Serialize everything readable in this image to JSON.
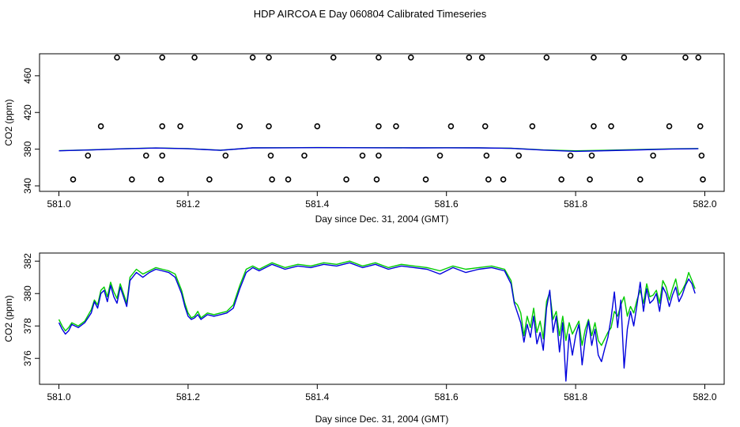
{
  "title": "HDP AIRCOA E  Day 060804  Calibrated Timeseries",
  "colors": {
    "series_green": "#00cc00",
    "series_blue": "#0000dd",
    "points": "#000000",
    "axis": "#000000"
  },
  "chart_data": [
    {
      "type": "line",
      "xlabel": "Day since Dec. 31, 2004 (GMT)",
      "ylabel": "CO2 (ppm)",
      "xlim": [
        580.97,
        582.03
      ],
      "ylim": [
        334,
        484
      ],
      "xticks": [
        581.0,
        581.2,
        581.4,
        581.6,
        581.8,
        582.0
      ],
      "xtick_labels": [
        "581.0",
        "581.2",
        "581.4",
        "581.6",
        "581.8",
        "582.0"
      ],
      "yticks": [
        340,
        380,
        420,
        460
      ],
      "ytick_labels": [
        "340",
        "380",
        "420",
        "460"
      ],
      "grid": false,
      "series": [
        {
          "color_key": "series_green",
          "line_style": "solid",
          "x": [
            581.0,
            581.05,
            581.1,
            581.15,
            581.2,
            581.25,
            581.3,
            581.35,
            581.4,
            581.45,
            581.5,
            581.55,
            581.6,
            581.65,
            581.7,
            581.75,
            581.8,
            581.85,
            581.9,
            581.95,
            581.99
          ],
          "y": [
            378.3,
            379.3,
            380.5,
            381.3,
            380.6,
            378.8,
            381.5,
            381.6,
            381.8,
            381.7,
            381.6,
            381.5,
            381.6,
            381.5,
            381.0,
            379.2,
            378.2,
            378.9,
            379.6,
            380.4,
            380.7
          ]
        },
        {
          "color_key": "series_blue",
          "line_style": "solid",
          "x": [
            581.0,
            581.05,
            581.1,
            581.15,
            581.2,
            581.25,
            581.3,
            581.35,
            581.4,
            581.45,
            581.5,
            581.55,
            581.6,
            581.65,
            581.7,
            581.75,
            581.8,
            581.85,
            581.9,
            581.95,
            581.99
          ],
          "y": [
            378.2,
            379.2,
            380.4,
            381.2,
            380.5,
            378.7,
            381.4,
            381.5,
            381.7,
            381.6,
            381.5,
            381.4,
            381.5,
            381.4,
            380.9,
            379.0,
            377.6,
            378.4,
            379.3,
            380.2,
            380.5
          ]
        }
      ],
      "points": {
        "marker": "open-circle",
        "x": [
          581.09,
          581.16,
          581.21,
          581.3,
          581.325,
          581.425,
          581.495,
          581.545,
          581.635,
          581.655,
          581.755,
          581.828,
          581.875,
          581.97,
          581.99,
          581.065,
          581.16,
          581.188,
          581.28,
          581.325,
          581.4,
          581.495,
          581.522,
          581.607,
          581.66,
          581.733,
          581.828,
          581.855,
          581.945,
          581.993,
          581.045,
          581.135,
          581.16,
          581.258,
          581.328,
          581.38,
          581.47,
          581.495,
          581.59,
          581.662,
          581.712,
          581.792,
          581.825,
          581.92,
          581.995,
          581.022,
          581.113,
          581.158,
          581.233,
          581.33,
          581.355,
          581.445,
          581.492,
          581.568,
          581.665,
          581.688,
          581.778,
          581.822,
          581.9,
          581.997
        ],
        "y": [
          480,
          480,
          480,
          480,
          480,
          480,
          480,
          480,
          480,
          480,
          480,
          480,
          480,
          480,
          480,
          405,
          405,
          405,
          405,
          405,
          405,
          405,
          405,
          405,
          405,
          405,
          405,
          405,
          405,
          405,
          373,
          373,
          373,
          373,
          373,
          373,
          373,
          373,
          373,
          373,
          373,
          373,
          373,
          373,
          373,
          347,
          347,
          347,
          347,
          347,
          347,
          347,
          347,
          347,
          347,
          347,
          347,
          347,
          347,
          347
        ]
      }
    },
    {
      "type": "line",
      "xlabel": "Day since Dec. 31, 2004 (GMT)",
      "ylabel": "CO2 (ppm)",
      "xlim": [
        580.97,
        582.03
      ],
      "ylim": [
        374.4,
        382.5
      ],
      "xticks": [
        581.0,
        581.2,
        581.4,
        581.6,
        581.8,
        582.0
      ],
      "xtick_labels": [
        "581.0",
        "581.2",
        "581.4",
        "581.6",
        "581.8",
        "582.0"
      ],
      "yticks": [
        376,
        378,
        380,
        382
      ],
      "ytick_labels": [
        "376",
        "378",
        "380",
        "382"
      ],
      "grid": false,
      "series": [
        {
          "color_key": "series_green",
          "line_style": "solid",
          "x": [
            581.0,
            581.005,
            581.01,
            581.015,
            581.02,
            581.03,
            581.04,
            581.05,
            581.055,
            581.06,
            581.065,
            581.07,
            581.075,
            581.08,
            581.085,
            581.09,
            581.095,
            581.1,
            581.105,
            581.11,
            581.12,
            581.13,
            581.14,
            581.15,
            581.16,
            581.17,
            581.18,
            581.19,
            581.195,
            581.2,
            581.205,
            581.21,
            581.215,
            581.22,
            581.23,
            581.24,
            581.25,
            581.26,
            581.27,
            581.28,
            581.29,
            581.3,
            581.31,
            581.33,
            581.35,
            581.37,
            581.39,
            581.41,
            581.43,
            581.45,
            581.47,
            581.49,
            581.51,
            581.53,
            581.55,
            581.57,
            581.59,
            581.61,
            581.63,
            581.65,
            581.67,
            581.69,
            581.7,
            581.705,
            581.71,
            581.715,
            581.72,
            581.725,
            581.73,
            581.735,
            581.74,
            581.745,
            581.75,
            581.755,
            581.76,
            581.765,
            581.77,
            581.775,
            581.78,
            581.785,
            581.79,
            581.795,
            581.8,
            581.805,
            581.81,
            581.815,
            581.82,
            581.825,
            581.83,
            581.835,
            581.84,
            581.845,
            581.85,
            581.855,
            581.86,
            581.865,
            581.87,
            581.875,
            581.88,
            581.885,
            581.89,
            581.895,
            581.9,
            581.905,
            581.91,
            581.915,
            581.92,
            581.925,
            581.93,
            581.935,
            581.94,
            581.945,
            581.95,
            581.955,
            581.96,
            581.965,
            581.97,
            581.975,
            581.98,
            581.985
          ],
          "y": [
            378.4,
            378.0,
            377.7,
            377.9,
            378.2,
            378.0,
            378.3,
            379.0,
            379.6,
            379.3,
            380.2,
            380.4,
            379.8,
            380.7,
            380.1,
            379.7,
            380.6,
            380.0,
            379.4,
            381.0,
            381.5,
            381.2,
            381.4,
            381.6,
            381.5,
            381.4,
            381.2,
            380.2,
            379.4,
            378.8,
            378.5,
            378.6,
            378.9,
            378.5,
            378.8,
            378.7,
            378.8,
            378.9,
            379.3,
            380.5,
            381.5,
            381.7,
            381.5,
            381.9,
            381.6,
            381.8,
            381.7,
            381.9,
            381.8,
            382.0,
            381.7,
            381.9,
            381.6,
            381.8,
            381.7,
            381.6,
            381.4,
            381.7,
            381.5,
            381.6,
            381.7,
            381.5,
            380.8,
            379.5,
            379.3,
            378.8,
            377.4,
            378.6,
            377.9,
            379.1,
            377.6,
            378.3,
            377.2,
            379.5,
            380.1,
            378.4,
            378.9,
            377.4,
            378.6,
            377.1,
            378.2,
            377.5,
            377.9,
            378.3,
            376.8,
            377.8,
            378.4,
            377.4,
            378.2,
            377.1,
            376.8,
            377.2,
            377.6,
            377.9,
            378.9,
            378.6,
            379.3,
            379.8,
            378.6,
            379.2,
            378.8,
            379.6,
            380.2,
            379.4,
            380.6,
            379.8,
            379.9,
            380.2,
            379.4,
            380.8,
            380.4,
            379.6,
            380.3,
            380.9,
            379.9,
            380.2,
            380.6,
            381.3,
            380.8,
            380.3
          ]
        },
        {
          "color_key": "series_blue",
          "line_style": "solid",
          "x": [
            581.0,
            581.005,
            581.01,
            581.015,
            581.02,
            581.03,
            581.04,
            581.05,
            581.055,
            581.06,
            581.065,
            581.07,
            581.075,
            581.08,
            581.085,
            581.09,
            581.095,
            581.1,
            581.105,
            581.11,
            581.12,
            581.13,
            581.14,
            581.15,
            581.16,
            581.17,
            581.18,
            581.19,
            581.195,
            581.2,
            581.205,
            581.21,
            581.215,
            581.22,
            581.23,
            581.24,
            581.25,
            581.26,
            581.27,
            581.28,
            581.29,
            581.3,
            581.31,
            581.33,
            581.35,
            581.37,
            581.39,
            581.41,
            581.43,
            581.45,
            581.47,
            581.49,
            581.51,
            581.53,
            581.55,
            581.57,
            581.59,
            581.61,
            581.63,
            581.65,
            581.67,
            581.69,
            581.7,
            581.705,
            581.71,
            581.715,
            581.72,
            581.725,
            581.73,
            581.735,
            581.74,
            581.745,
            581.75,
            581.755,
            581.76,
            581.765,
            581.77,
            581.775,
            581.78,
            581.785,
            581.79,
            581.795,
            581.8,
            581.805,
            581.81,
            581.815,
            581.82,
            581.825,
            581.83,
            581.835,
            581.84,
            581.845,
            581.85,
            581.855,
            581.86,
            581.865,
            581.87,
            581.875,
            581.88,
            581.885,
            581.89,
            581.895,
            581.9,
            581.905,
            581.91,
            581.915,
            581.92,
            581.925,
            581.93,
            581.935,
            581.94,
            581.945,
            581.95,
            581.955,
            581.96,
            581.965,
            581.97,
            581.975,
            581.98,
            581.985
          ],
          "y": [
            378.2,
            377.8,
            377.5,
            377.7,
            378.1,
            377.9,
            378.2,
            378.8,
            379.5,
            379.1,
            380.0,
            380.2,
            379.5,
            380.5,
            379.8,
            379.4,
            380.4,
            379.8,
            379.2,
            380.8,
            381.3,
            381.0,
            381.3,
            381.5,
            381.4,
            381.3,
            381.0,
            380.0,
            379.2,
            378.6,
            378.4,
            378.5,
            378.7,
            378.4,
            378.7,
            378.6,
            378.7,
            378.8,
            379.1,
            380.3,
            381.3,
            381.6,
            381.4,
            381.8,
            381.5,
            381.7,
            381.6,
            381.8,
            381.7,
            381.9,
            381.6,
            381.8,
            381.5,
            381.7,
            381.6,
            381.5,
            381.2,
            381.6,
            381.3,
            381.5,
            381.6,
            381.4,
            380.6,
            379.4,
            378.8,
            378.2,
            377.0,
            378.1,
            377.3,
            378.6,
            376.9,
            377.6,
            376.5,
            379.1,
            380.2,
            377.6,
            378.6,
            376.4,
            378.2,
            374.6,
            377.5,
            376.2,
            377.4,
            378.1,
            375.6,
            377.2,
            378.3,
            376.8,
            377.8,
            376.2,
            375.8,
            376.6,
            377.3,
            378.5,
            380.1,
            377.9,
            379.6,
            375.4,
            377.8,
            378.9,
            378.0,
            379.3,
            380.7,
            378.9,
            380.3,
            379.4,
            379.6,
            380.0,
            378.9,
            380.4,
            380.0,
            379.2,
            379.9,
            380.4,
            379.5,
            379.9,
            380.5,
            380.9,
            380.6,
            380.0
          ]
        }
      ]
    }
  ]
}
